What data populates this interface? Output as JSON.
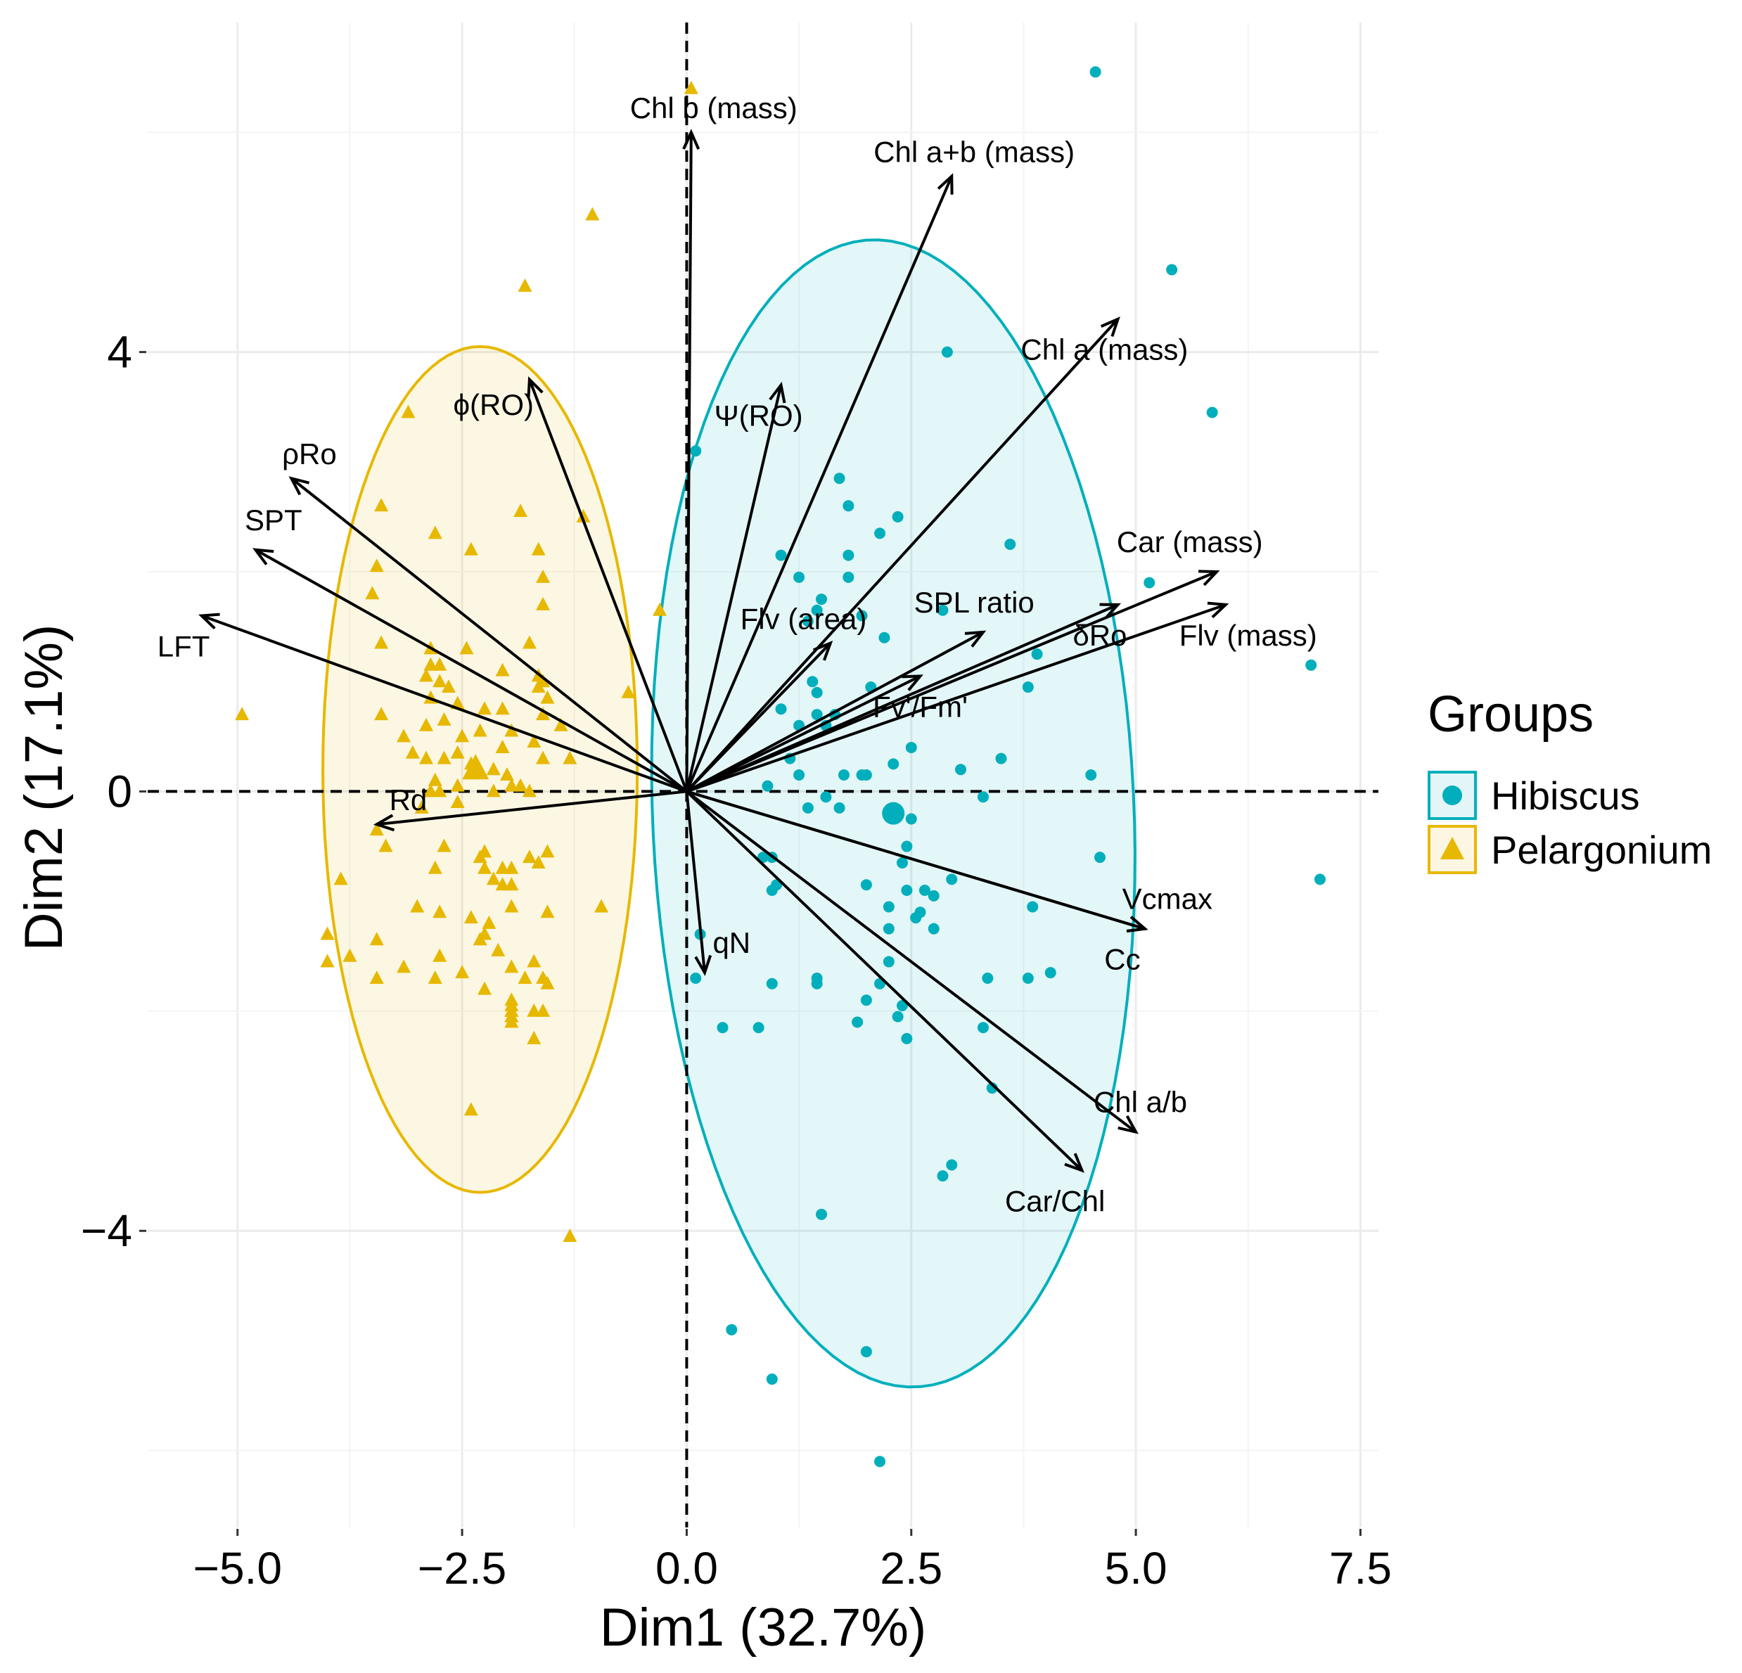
{
  "chart_data": {
    "type": "scatter",
    "subtype": "pca_biplot",
    "xlabel": "Dim1 (32.7%)",
    "ylabel": "Dim2 (17.1%)",
    "xlim": [
      -6.0,
      7.7
    ],
    "ylim": [
      -6.7,
      7.0
    ],
    "x_ticks": [
      -5.0,
      -2.5,
      0.0,
      2.5,
      5.0,
      7.5
    ],
    "x_tick_labels": [
      "−5.0",
      "−2.5",
      "0.0",
      "2.5",
      "5.0",
      "7.5"
    ],
    "y_ticks": [
      -4,
      0,
      4
    ],
    "y_tick_labels": [
      "−4",
      "0",
      "4"
    ],
    "legend": {
      "title": "Groups",
      "position": "right",
      "entries": [
        "Hibiscus",
        "Pelargonium"
      ]
    },
    "colors": {
      "Hibiscus": "#00AFBB",
      "Pelargonium": "#E7B800"
    },
    "ellipses": [
      {
        "group": "Hibiscus",
        "cx": 2.3,
        "cy": -0.2,
        "rx": 5.25,
        "ry": 2.7,
        "angle_deg": 96
      },
      {
        "group": "Pelargonium",
        "cx": -2.3,
        "cy": 0.2,
        "rx": 3.85,
        "ry": 1.75,
        "angle_deg": 90
      }
    ],
    "group_means": [
      {
        "group": "Hibiscus",
        "x": 2.3,
        "y": -0.2
      },
      {
        "group": "Pelargonium",
        "x": -2.35,
        "y": 0.2
      }
    ],
    "variables": [
      {
        "name": "Chl b (mass)",
        "x": 0.05,
        "y": 6.0,
        "label_x": 0.3,
        "label_y": 6.2
      },
      {
        "name": "Chl a+b (mass)",
        "x": 2.95,
        "y": 5.6,
        "label_x": 3.2,
        "label_y": 5.8
      },
      {
        "name": "Chl a (mass)",
        "x": 4.8,
        "y": 4.3,
        "label_x": 4.65,
        "label_y": 4.0
      },
      {
        "name": "Ψ(RO)",
        "x": 1.05,
        "y": 3.7,
        "label_x": 0.8,
        "label_y": 3.4
      },
      {
        "name": "ϕ(RO)",
        "x": -1.75,
        "y": 3.75,
        "label_x": -2.15,
        "label_y": 3.5
      },
      {
        "name": "ρRo",
        "x": -4.4,
        "y": 2.85,
        "label_x": -4.2,
        "label_y": 3.05
      },
      {
        "name": "SPT",
        "x": -4.8,
        "y": 2.2,
        "label_x": -4.6,
        "label_y": 2.45
      },
      {
        "name": "LFT",
        "x": -5.4,
        "y": 1.6,
        "label_x": -5.6,
        "label_y": 1.3
      },
      {
        "name": "Car (mass)",
        "x": 5.9,
        "y": 2.0,
        "label_x": 5.6,
        "label_y": 2.25
      },
      {
        "name": "Flv (mass)",
        "x": 6.0,
        "y": 1.7,
        "label_x": 6.25,
        "label_y": 1.4
      },
      {
        "name": "δRo",
        "x": 4.8,
        "y": 1.7,
        "label_x": 4.6,
        "label_y": 1.4
      },
      {
        "name": "SPL ratio",
        "x": 3.3,
        "y": 1.45,
        "label_x": 3.2,
        "label_y": 1.7
      },
      {
        "name": "Flv (area)",
        "x": 1.6,
        "y": 1.35,
        "label_x": 1.3,
        "label_y": 1.55
      },
      {
        "name": "Fv'/Fm'",
        "x": 2.6,
        "y": 1.05,
        "label_x": 2.6,
        "label_y": 0.75
      },
      {
        "name": "Rd",
        "x": -3.45,
        "y": -0.3,
        "label_x": -3.1,
        "label_y": -0.1
      },
      {
        "name": "qN",
        "x": 0.2,
        "y": -1.65,
        "label_x": 0.5,
        "label_y": -1.4
      },
      {
        "name": "Vcmax",
        "x": 5.1,
        "y": -1.25,
        "label_x": 5.35,
        "label_y": -1.0
      },
      {
        "name": "Cc",
        "x": 5.1,
        "y": -1.25,
        "label_x": 4.85,
        "label_y": -1.55
      },
      {
        "name": "Chl a/b",
        "x": 5.0,
        "y": -3.1,
        "label_x": 5.05,
        "label_y": -2.85
      },
      {
        "name": "Car/Chl",
        "x": 4.4,
        "y": -3.45,
        "label_x": 4.1,
        "label_y": -3.75
      }
    ],
    "series": [
      {
        "name": "Hibiscus",
        "marker": "circle",
        "points": [
          [
            4.55,
            6.55
          ],
          [
            5.4,
            4.75
          ],
          [
            2.9,
            4.0
          ],
          [
            5.85,
            3.45
          ],
          [
            0.1,
            3.1
          ],
          [
            1.7,
            2.85
          ],
          [
            1.8,
            2.6
          ],
          [
            2.35,
            2.5
          ],
          [
            2.15,
            2.35
          ],
          [
            3.6,
            2.25
          ],
          [
            1.05,
            2.15
          ],
          [
            1.8,
            2.15
          ],
          [
            1.25,
            1.95
          ],
          [
            1.8,
            1.95
          ],
          [
            5.15,
            1.9
          ],
          [
            1.5,
            1.75
          ],
          [
            1.45,
            1.65
          ],
          [
            2.85,
            1.65
          ],
          [
            1.95,
            1.6
          ],
          [
            1.35,
            1.55
          ],
          [
            2.2,
            1.4
          ],
          [
            6.95,
            1.15
          ],
          [
            3.9,
            1.25
          ],
          [
            1.4,
            1.0
          ],
          [
            1.45,
            0.9
          ],
          [
            2.05,
            0.95
          ],
          [
            3.8,
            0.95
          ],
          [
            1.05,
            0.75
          ],
          [
            1.45,
            0.7
          ],
          [
            1.65,
            0.7
          ],
          [
            1.25,
            0.6
          ],
          [
            1.55,
            0.6
          ],
          [
            2.5,
            0.4
          ],
          [
            1.15,
            0.3
          ],
          [
            3.5,
            0.3
          ],
          [
            2.3,
            0.25
          ],
          [
            1.25,
            0.15
          ],
          [
            1.75,
            0.15
          ],
          [
            1.95,
            0.15
          ],
          [
            2.0,
            0.15
          ],
          [
            3.05,
            0.2
          ],
          [
            4.5,
            0.15
          ],
          [
            0.9,
            0.05
          ],
          [
            1.55,
            -0.05
          ],
          [
            3.3,
            -0.05
          ],
          [
            1.35,
            -0.15
          ],
          [
            1.7,
            -0.15
          ],
          [
            2.5,
            -0.25
          ],
          [
            2.45,
            -0.5
          ],
          [
            0.85,
            -0.6
          ],
          [
            0.95,
            -0.6
          ],
          [
            4.6,
            -0.6
          ],
          [
            2.4,
            -0.65
          ],
          [
            1.0,
            -0.85
          ],
          [
            2.95,
            -0.8
          ],
          [
            7.05,
            -0.8
          ],
          [
            0.95,
            -0.9
          ],
          [
            2.0,
            -0.85
          ],
          [
            2.45,
            -0.9
          ],
          [
            2.65,
            -0.9
          ],
          [
            2.75,
            -0.95
          ],
          [
            2.25,
            -1.05
          ],
          [
            3.85,
            -1.05
          ],
          [
            2.6,
            -1.1
          ],
          [
            2.55,
            -1.15
          ],
          [
            2.25,
            -1.25
          ],
          [
            2.75,
            -1.25
          ],
          [
            0.15,
            -1.3
          ],
          [
            2.25,
            -1.55
          ],
          [
            0.1,
            -1.7
          ],
          [
            0.95,
            -1.75
          ],
          [
            1.45,
            -1.7
          ],
          [
            1.45,
            -1.75
          ],
          [
            2.15,
            -1.75
          ],
          [
            3.35,
            -1.7
          ],
          [
            3.8,
            -1.7
          ],
          [
            4.05,
            -1.65
          ],
          [
            2.0,
            -1.9
          ],
          [
            2.4,
            -1.95
          ],
          [
            1.9,
            -2.1
          ],
          [
            2.35,
            -2.05
          ],
          [
            0.4,
            -2.15
          ],
          [
            0.8,
            -2.15
          ],
          [
            3.3,
            -2.15
          ],
          [
            2.45,
            -2.25
          ],
          [
            3.4,
            -2.7
          ],
          [
            2.95,
            -3.4
          ],
          [
            2.85,
            -3.5
          ],
          [
            1.5,
            -3.85
          ],
          [
            0.5,
            -4.9
          ],
          [
            2.0,
            -5.1
          ],
          [
            0.95,
            -5.35
          ],
          [
            2.15,
            -6.1
          ]
        ]
      },
      {
        "name": "Pelargonium",
        "marker": "triangle",
        "points": [
          [
            0.05,
            6.4
          ],
          [
            -1.05,
            5.25
          ],
          [
            -1.8,
            4.6
          ],
          [
            -3.1,
            3.45
          ],
          [
            -3.4,
            2.6
          ],
          [
            -1.85,
            2.55
          ],
          [
            -1.15,
            2.5
          ],
          [
            -2.8,
            2.35
          ],
          [
            -2.4,
            2.2
          ],
          [
            -1.65,
            2.2
          ],
          [
            -3.45,
            2.05
          ],
          [
            -1.6,
            1.95
          ],
          [
            -3.5,
            1.8
          ],
          [
            -1.6,
            1.7
          ],
          [
            -0.3,
            1.65
          ],
          [
            -3.4,
            1.35
          ],
          [
            -2.85,
            1.3
          ],
          [
            -2.45,
            1.3
          ],
          [
            -1.75,
            1.35
          ],
          [
            -2.85,
            1.15
          ],
          [
            -2.75,
            1.15
          ],
          [
            -2.05,
            1.1
          ],
          [
            -2.9,
            1.05
          ],
          [
            -2.75,
            1.0
          ],
          [
            -1.65,
            1.05
          ],
          [
            -1.6,
            1.0
          ],
          [
            -2.65,
            0.95
          ],
          [
            -1.65,
            0.95
          ],
          [
            -2.85,
            0.85
          ],
          [
            -2.55,
            0.8
          ],
          [
            -1.55,
            0.85
          ],
          [
            -0.65,
            0.9
          ],
          [
            -2.25,
            0.75
          ],
          [
            -2.05,
            0.75
          ],
          [
            -1.6,
            0.7
          ],
          [
            -4.95,
            0.7
          ],
          [
            -3.4,
            0.7
          ],
          [
            -2.7,
            0.65
          ],
          [
            -1.4,
            0.6
          ],
          [
            -2.9,
            0.6
          ],
          [
            -2.3,
            0.55
          ],
          [
            -1.95,
            0.55
          ],
          [
            -3.15,
            0.5
          ],
          [
            -2.5,
            0.5
          ],
          [
            -1.7,
            0.45
          ],
          [
            -2.05,
            0.4
          ],
          [
            -3.05,
            0.35
          ],
          [
            -2.55,
            0.35
          ],
          [
            -2.9,
            0.3
          ],
          [
            -2.7,
            0.3
          ],
          [
            -1.6,
            0.3
          ],
          [
            -1.3,
            0.3
          ],
          [
            -2.4,
            0.25
          ],
          [
            -2.35,
            0.2
          ],
          [
            -2.15,
            0.2
          ],
          [
            -2.0,
            0.15
          ],
          [
            -2.8,
            0.1
          ],
          [
            -2.55,
            0.05
          ],
          [
            -1.95,
            0.05
          ],
          [
            -2.85,
            0.0
          ],
          [
            -2.75,
            0.0
          ],
          [
            -2.15,
            0.0
          ],
          [
            -1.85,
            0.05
          ],
          [
            -1.75,
            0.0
          ],
          [
            -2.55,
            -0.1
          ],
          [
            -2.95,
            -0.15
          ],
          [
            -3.45,
            -0.35
          ],
          [
            -3.35,
            -0.5
          ],
          [
            -2.7,
            -0.5
          ],
          [
            -2.25,
            -0.55
          ],
          [
            -1.55,
            -0.55
          ],
          [
            -1.75,
            -0.6
          ],
          [
            -2.3,
            -0.6
          ],
          [
            -1.65,
            -0.65
          ],
          [
            -2.8,
            -0.7
          ],
          [
            -2.05,
            -0.7
          ],
          [
            -2.25,
            -0.7
          ],
          [
            -1.95,
            -0.7
          ],
          [
            -3.85,
            -0.8
          ],
          [
            -2.15,
            -0.8
          ],
          [
            -2.05,
            -0.85
          ],
          [
            -1.95,
            -0.85
          ],
          [
            -1.95,
            -1.05
          ],
          [
            -3.0,
            -1.05
          ],
          [
            -2.75,
            -1.1
          ],
          [
            -1.55,
            -1.1
          ],
          [
            -2.4,
            -1.15
          ],
          [
            -2.2,
            -1.2
          ],
          [
            -0.95,
            -1.05
          ],
          [
            -4.0,
            -1.3
          ],
          [
            -3.45,
            -1.35
          ],
          [
            -2.25,
            -1.3
          ],
          [
            -2.3,
            -1.35
          ],
          [
            -3.75,
            -1.5
          ],
          [
            -2.75,
            -1.5
          ],
          [
            -4.0,
            -1.55
          ],
          [
            -2.1,
            -1.45
          ],
          [
            -1.7,
            -1.55
          ],
          [
            -1.95,
            -1.6
          ],
          [
            -3.15,
            -1.6
          ],
          [
            -2.5,
            -1.65
          ],
          [
            -3.45,
            -1.7
          ],
          [
            -2.8,
            -1.7
          ],
          [
            -1.8,
            -1.7
          ],
          [
            -1.55,
            -1.75
          ],
          [
            -2.25,
            -1.8
          ],
          [
            -1.95,
            -1.95
          ],
          [
            -1.95,
            -1.9
          ],
          [
            -1.95,
            -2.0
          ],
          [
            -1.95,
            -2.0
          ],
          [
            -1.95,
            -2.0
          ],
          [
            -1.95,
            -2.0
          ],
          [
            -1.95,
            -2.05
          ],
          [
            -1.95,
            -2.05
          ],
          [
            -1.95,
            -2.05
          ],
          [
            -1.95,
            -2.1
          ],
          [
            -1.95,
            -2.1
          ],
          [
            -1.6,
            -1.7
          ],
          [
            -1.7,
            -2.0
          ],
          [
            -1.95,
            -1.95
          ],
          [
            -1.95,
            -1.95
          ],
          [
            -1.6,
            -2.0
          ],
          [
            -1.95,
            -2.1
          ],
          [
            -1.7,
            -2.25
          ],
          [
            -1.95,
            -2.0
          ],
          [
            -2.4,
            -2.9
          ],
          [
            -1.3,
            -4.05
          ]
        ]
      }
    ]
  }
}
